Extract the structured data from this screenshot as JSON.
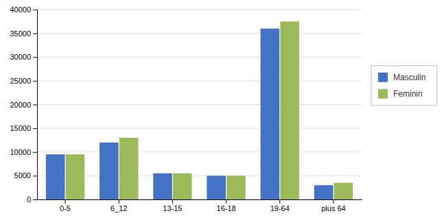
{
  "chart_data": {
    "type": "bar",
    "categories": [
      "0-5",
      "6_12",
      "13-15",
      "16-18",
      "19-64",
      "plus 64"
    ],
    "series": [
      {
        "name": "Masculin",
        "color": "#4472C4",
        "values": [
          9500,
          12000,
          5500,
          5000,
          36000,
          3000
        ]
      },
      {
        "name": "Feminin",
        "color": "#9BBB59",
        "values": [
          9500,
          13000,
          5500,
          5000,
          37500,
          3500
        ]
      }
    ],
    "ylim": [
      0,
      40000
    ],
    "yticks": [
      0,
      5000,
      10000,
      15000,
      20000,
      25000,
      30000,
      35000,
      40000
    ],
    "grid": true,
    "legend": "right"
  }
}
